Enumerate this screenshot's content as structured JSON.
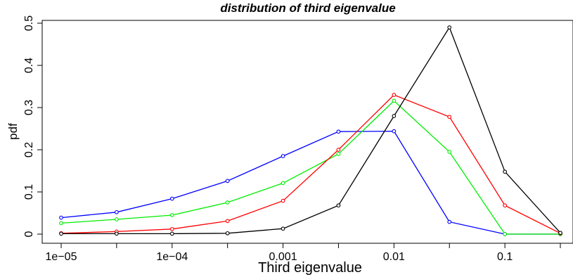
{
  "chart_data": {
    "type": "line",
    "title": "distribution of third eigenvalue",
    "xlabel": "Third eigenvalue",
    "ylabel": "pdf",
    "x_scale": "log10",
    "xlim": [
      1e-05,
      0.316
    ],
    "ylim": [
      0,
      0.51
    ],
    "x_ticks": [
      1e-05,
      0.0001,
      0.001,
      0.01,
      0.1
    ],
    "x_tick_labels": [
      "1e−05",
      "1e−04",
      "0.001",
      "0.01",
      "0.1"
    ],
    "y_ticks": [
      0,
      0.1,
      0.2,
      0.3,
      0.4,
      0.5
    ],
    "y_tick_labels": [
      "0",
      "0.1",
      "0.2",
      "0.3",
      "0.4",
      "0.5"
    ],
    "grid": false,
    "legend": "none",
    "x": [
      1e-05,
      3.16e-05,
      0.0001,
      0.000316,
      0.001,
      0.00316,
      0.01,
      0.0316,
      0.1,
      0.316
    ],
    "series": [
      {
        "color": "#0000ff",
        "values": [
          0.039,
          0.052,
          0.084,
          0.126,
          0.185,
          0.243,
          0.244,
          0.029,
          0.0,
          0.0
        ]
      },
      {
        "color": "#00ee00",
        "values": [
          0.026,
          0.035,
          0.045,
          0.075,
          0.121,
          0.19,
          0.316,
          0.195,
          0.0,
          0.0
        ]
      },
      {
        "color": "#ff0000",
        "values": [
          0.002,
          0.006,
          0.012,
          0.031,
          0.079,
          0.2,
          0.33,
          0.278,
          0.068,
          0.002
        ]
      },
      {
        "color": "#000000",
        "values": [
          0.001,
          0.001,
          0.001,
          0.002,
          0.013,
          0.068,
          0.28,
          0.49,
          0.148,
          0.003
        ]
      }
    ]
  }
}
